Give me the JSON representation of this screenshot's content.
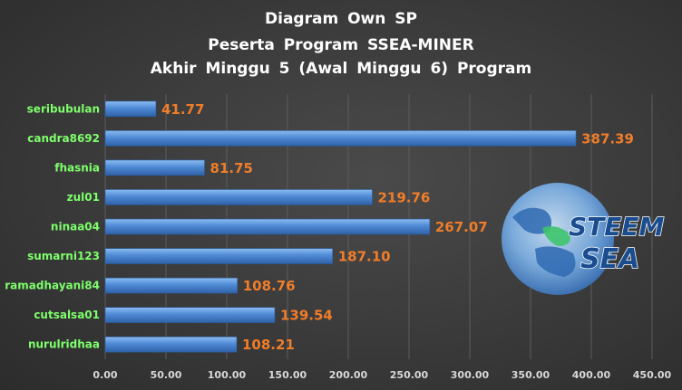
{
  "chart_data": {
    "type": "bar",
    "orientation": "horizontal",
    "title_lines": [
      "Diagram  Own  SP",
      "Peserta  Program  SSEA-MINER",
      "Akhir  Minggu  5  (Awal  Minggu  6)  Program"
    ],
    "categories": [
      "seribubulan",
      "candra8692",
      "fhasnia",
      "zul01",
      "ninaa04",
      "sumarni123",
      "ramadhayani84",
      "cutsalsa01",
      "nurulridhaa"
    ],
    "values": [
      41.77,
      387.39,
      81.75,
      219.76,
      267.07,
      187.1,
      108.76,
      139.54,
      108.21
    ],
    "value_labels": [
      "41.77",
      "387.39",
      "81.75",
      "219.76",
      "267.07",
      "187.10",
      "108.76",
      "139.54",
      "108.21"
    ],
    "xlim": [
      0,
      450
    ],
    "x_ticks": [
      "0.00",
      "50.00",
      "100.00",
      "150.00",
      "200.00",
      "250.00",
      "300.00",
      "350.00",
      "400.00",
      "450.00"
    ],
    "grid": true,
    "colors": {
      "bar": "#4a86d4",
      "value_label": "#f07d2a",
      "category_label": "#7dff6b"
    }
  },
  "logo": {
    "line1": "STEEM",
    "line2": "SEA"
  }
}
